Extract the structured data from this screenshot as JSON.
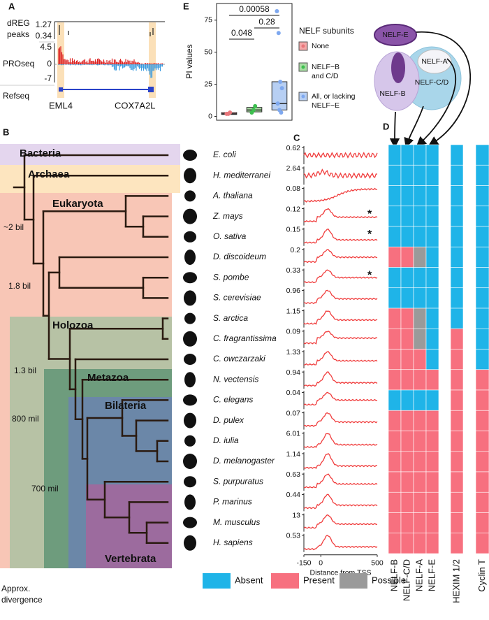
{
  "panel_a": {
    "letter": "A",
    "dreg_label": [
      "dREG",
      "peaks"
    ],
    "dreg_ticks": [
      "1.27",
      "0.34"
    ],
    "proseq_label": "PROseq",
    "proseq_ticks": [
      "4.5",
      "0",
      "-7"
    ],
    "refseq_label": "Refseq",
    "genes": [
      "EML4",
      "COX7A2L"
    ]
  },
  "panel_e": {
    "letter": "E",
    "y_label": "PI values",
    "ylim": [
      -3,
      88
    ],
    "yticks": [
      0,
      25,
      50,
      75
    ],
    "comparisons": [
      "0.048",
      "0.00058",
      "0.28"
    ],
    "legend_title": "NELF subunits",
    "groups": [
      {
        "name": [
          "None"
        ],
        "color": "#e8767a",
        "box_color": "#f4a8a8",
        "points": [
          2,
          2,
          3
        ],
        "q1": 1.5,
        "median": 2,
        "q3": 3
      },
      {
        "name": [
          "NELF−B",
          "and C/D"
        ],
        "color": "#3cbf4e",
        "box_color": "#a8dca3",
        "points": [
          3,
          5,
          8
        ],
        "q1": 3.5,
        "median": 5,
        "q3": 7
      },
      {
        "name": [
          "All, or lacking",
          "NELF−E"
        ],
        "color": "#7ea8ef",
        "box_color": "#b7cff3",
        "points": [
          82,
          65,
          27,
          22,
          10,
          5,
          3
        ],
        "q1": 5,
        "median": 10,
        "q3": 27
      }
    ]
  },
  "panel_b": {
    "letter": "B",
    "clades": [
      "Bacteria",
      "Archaea",
      "Eukaryota",
      "Holozoa",
      "Metazoa",
      "Bilateria",
      "Vertebrata"
    ],
    "divergence": [
      "~2 bil",
      "1.8 bil",
      "1.3 bil",
      "800 mil",
      "700 mil"
    ],
    "footer": [
      "Approx.",
      "divergence"
    ]
  },
  "species": [
    "E. coli",
    "H. mediterranei",
    "A. thaliana",
    "Z. mays",
    "O. sativa",
    "D. discoideum",
    "S. pombe",
    "S. cerevisiae",
    "S. arctica",
    "C. fragrantissima",
    "C. owczarzaki",
    "N. vectensis",
    "C. elegans",
    "D. pulex",
    "D. iulia",
    "D. melanogaster",
    "S. purpuratus",
    "P. marinus",
    "M. musculus",
    "H. sapiens"
  ],
  "panel_c": {
    "letter": "C",
    "max_values": [
      0.62,
      2.64,
      0.08,
      0.12,
      0.15,
      0.2,
      0.33,
      0.96,
      1.15,
      0.09,
      1.33,
      0.94,
      0.04,
      0.07,
      6.01,
      1.14,
      0.63,
      0.44,
      13,
      0.53
    ],
    "asterisks": [
      null,
      null,
      null,
      "*",
      "*",
      null,
      "*",
      null,
      null,
      null,
      null,
      null,
      null,
      null,
      null,
      null,
      null,
      null,
      null,
      null
    ],
    "xlim": [
      -150,
      500
    ],
    "xticks": [
      -150,
      0,
      500
    ],
    "x_label": "Distance from TSS",
    "line_color": "#f03c3c"
  },
  "panel_d": {
    "letter": "D",
    "columns": [
      "NELF-B",
      "NELF-C/D",
      "NELF-A",
      "NELF-E",
      "HEXIM 1/2",
      "Cyclin T"
    ],
    "legend": [
      "Absent",
      "Present",
      "Possible"
    ],
    "legend_colors": [
      "#1fb4e8",
      "#f7707f",
      "#9a9a9a"
    ],
    "cells": [
      [
        0,
        0,
        0,
        0,
        0,
        0
      ],
      [
        0,
        0,
        0,
        0,
        0,
        0
      ],
      [
        0,
        0,
        0,
        0,
        0,
        0
      ],
      [
        0,
        0,
        0,
        0,
        0,
        0
      ],
      [
        0,
        0,
        0,
        0,
        0,
        0
      ],
      [
        1,
        1,
        2,
        0,
        0,
        0
      ],
      [
        0,
        0,
        0,
        0,
        0,
        0
      ],
      [
        0,
        0,
        0,
        0,
        0,
        0
      ],
      [
        1,
        1,
        2,
        0,
        0,
        0
      ],
      [
        1,
        1,
        2,
        0,
        1,
        0
      ],
      [
        1,
        1,
        1,
        0,
        1,
        0
      ],
      [
        1,
        1,
        1,
        1,
        1,
        1
      ],
      [
        0,
        0,
        0,
        0,
        1,
        1
      ],
      [
        1,
        1,
        1,
        1,
        1,
        1
      ],
      [
        1,
        1,
        1,
        1,
        1,
        1
      ],
      [
        1,
        1,
        1,
        1,
        1,
        1
      ],
      [
        1,
        1,
        1,
        1,
        1,
        1
      ],
      [
        1,
        1,
        1,
        1,
        1,
        1
      ],
      [
        1,
        1,
        1,
        1,
        1,
        1
      ],
      [
        1,
        1,
        1,
        1,
        1,
        1
      ]
    ]
  },
  "complex": {
    "labels": [
      "NELF-E",
      "NELF-A",
      "NELF-C/D",
      "NELF-B"
    ]
  }
}
